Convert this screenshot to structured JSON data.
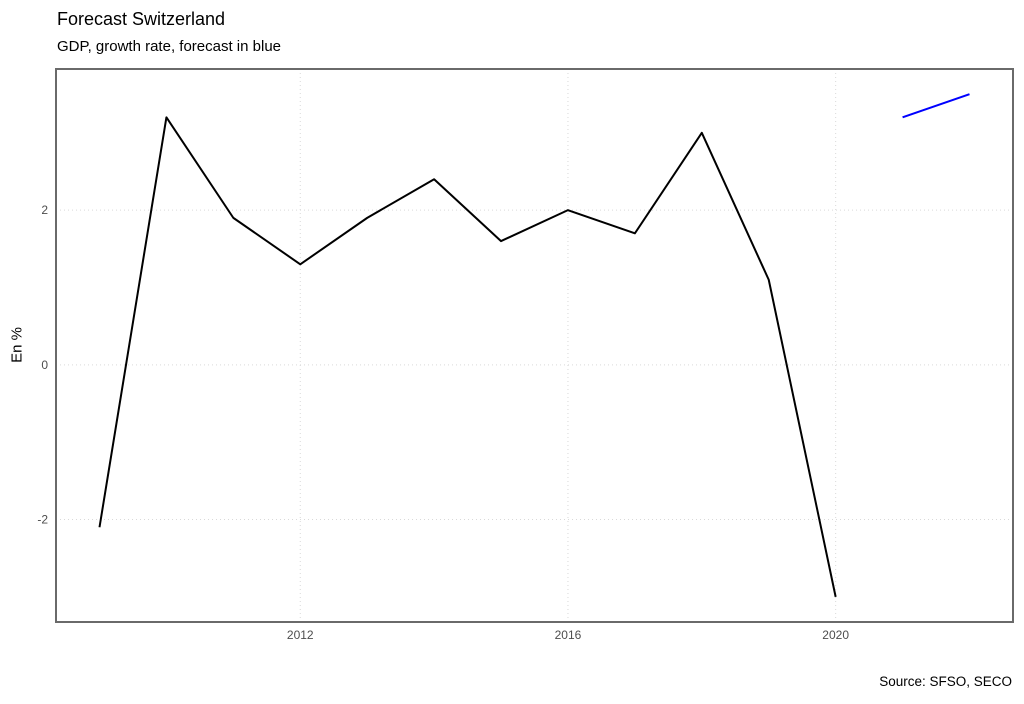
{
  "chart": {
    "title": "Forecast Switzerland",
    "subtitle": "GDP, growth rate, forecast in blue",
    "ylabel": "En %",
    "caption": "Source: SFSO, SECO"
  },
  "chart_data": {
    "type": "line",
    "title": "Forecast Switzerland",
    "subtitle": "GDP, growth rate, forecast in blue",
    "xlabel": "",
    "ylabel": "En %",
    "caption": "Source: SFSO, SECO",
    "series": [
      {
        "name": "gdp-growth-actual",
        "color": "#000000",
        "x": [
          2009,
          2010,
          2011,
          2012,
          2013,
          2014,
          2015,
          2016,
          2017,
          2018,
          2019,
          2020
        ],
        "values": [
          -2.1,
          3.2,
          1.9,
          1.3,
          1.9,
          2.4,
          1.6,
          2.0,
          1.7,
          3.0,
          1.1,
          -3.0
        ]
      },
      {
        "name": "gdp-growth-forecast",
        "color": "#0000ff",
        "x": [
          2021,
          2022
        ],
        "values": [
          3.2,
          3.5
        ]
      }
    ],
    "xticks": [
      2012,
      2016,
      2020
    ],
    "yticks": [
      -2,
      0,
      2
    ],
    "xlim": [
      2009,
      2022
    ],
    "ylim": [
      -3.0,
      3.5
    ],
    "grid": "major-only, dotted",
    "legend_position": "none",
    "colors": {
      "grid": "#d9d9d9",
      "panel_border": "#6a6a6a",
      "tick_text": "#4d4d4d",
      "actual_line": "#000000",
      "forecast_line": "#0000ff"
    }
  }
}
